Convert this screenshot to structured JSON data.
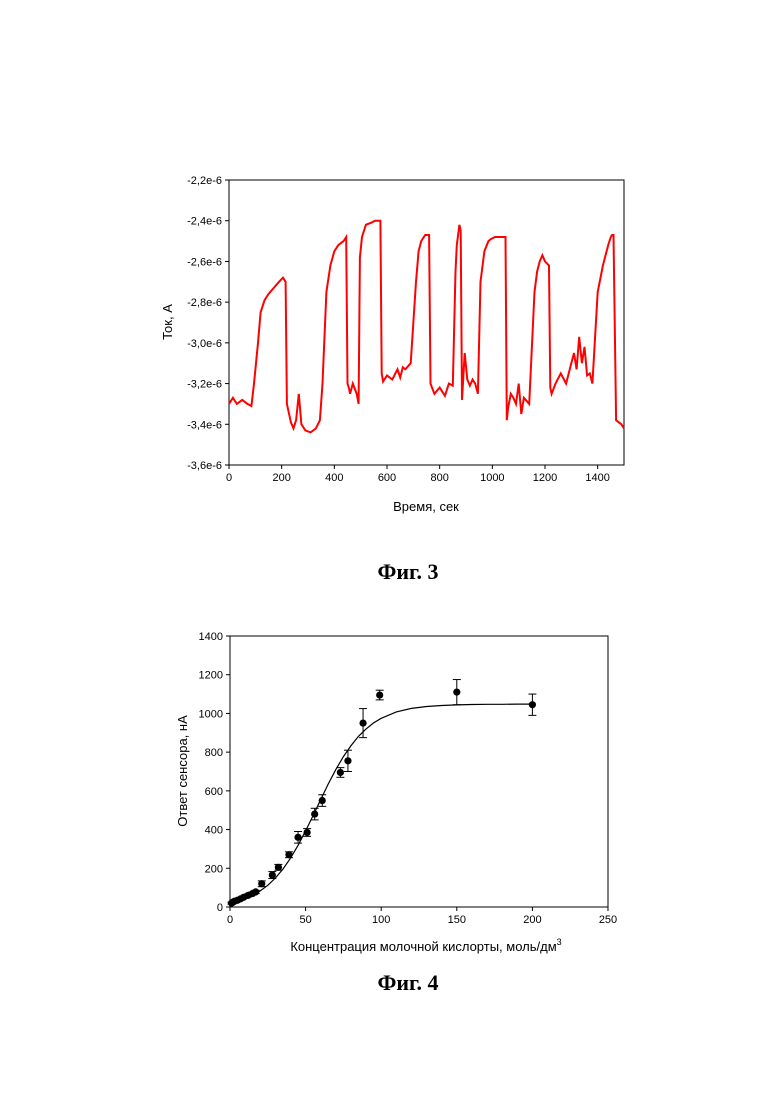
{
  "chart_data": [
    {
      "type": "line",
      "caption": "Фиг. 3",
      "xlabel": "Время, сек",
      "ylabel": "Ток, А",
      "xlim": [
        0,
        1500
      ],
      "ylim": [
        -3.6e-06,
        -2.2e-06
      ],
      "xticks": [
        0,
        200,
        400,
        600,
        800,
        1000,
        1200,
        1400
      ],
      "xtick_labels": [
        "0",
        "200",
        "400",
        "600",
        "800",
        "1000",
        "1200",
        "1400"
      ],
      "yticks": [
        -2.2e-06,
        -2.4e-06,
        -2.6e-06,
        -2.8e-06,
        -3e-06,
        -3.2e-06,
        -3.4e-06,
        -3.6e-06
      ],
      "ytick_labels": [
        "-2,2e-6",
        "-2,4e-6",
        "-2,6e-6",
        "-2,8e-6",
        "-3,0e-6",
        "-3,2e-6",
        "-3,4e-6",
        "-3,6e-6"
      ],
      "series_color": "#ff0000",
      "series": [
        {
          "x": [
            0,
            15,
            30,
            50,
            70,
            85,
            95,
            110,
            120,
            135,
            150,
            170,
            190,
            205,
            215,
            220,
            235,
            245,
            255,
            265,
            275,
            290,
            310,
            330,
            345,
            355,
            370,
            385,
            400,
            415,
            435,
            445,
            450,
            455,
            460,
            470,
            485,
            492,
            497,
            505,
            520,
            540,
            555,
            565,
            575,
            580,
            585,
            600,
            620,
            640,
            650,
            660,
            670,
            690,
            710,
            720,
            730,
            745,
            755,
            760,
            765,
            780,
            800,
            820,
            835,
            850,
            860,
            865,
            875,
            880,
            885,
            895,
            905,
            915,
            925,
            935,
            945,
            955,
            970,
            985,
            995,
            1010,
            1025,
            1040,
            1050,
            1055,
            1060,
            1070,
            1080,
            1090,
            1100,
            1110,
            1120,
            1140,
            1160,
            1170,
            1180,
            1190,
            1200,
            1215,
            1220,
            1225,
            1240,
            1260,
            1280,
            1300,
            1310,
            1320,
            1330,
            1340,
            1350,
            1360,
            1370,
            1380,
            1400,
            1420,
            1440,
            1450,
            1455,
            1460,
            1470,
            1490,
            1500
          ],
          "y": [
            -3.3e-06,
            -3.27e-06,
            -3.3e-06,
            -3.28e-06,
            -3.3e-06,
            -3.31e-06,
            -3.2e-06,
            -3e-06,
            -2.85e-06,
            -2.79e-06,
            -2.76e-06,
            -2.73e-06,
            -2.7e-06,
            -2.68e-06,
            -2.7e-06,
            -3.3e-06,
            -3.39e-06,
            -3.42e-06,
            -3.38e-06,
            -3.25e-06,
            -3.4e-06,
            -3.43e-06,
            -3.44e-06,
            -3.42e-06,
            -3.38e-06,
            -3.2e-06,
            -2.75e-06,
            -2.62e-06,
            -2.55e-06,
            -2.52e-06,
            -2.5e-06,
            -2.48e-06,
            -3.2e-06,
            -3.22e-06,
            -3.25e-06,
            -3.2e-06,
            -3.25e-06,
            -3.3e-06,
            -2.58e-06,
            -2.48e-06,
            -2.42e-06,
            -2.41e-06,
            -2.4e-06,
            -2.4e-06,
            -2.4e-06,
            -3.15e-06,
            -3.19e-06,
            -3.16e-06,
            -3.18e-06,
            -3.13e-06,
            -3.17e-06,
            -3.12e-06,
            -3.13e-06,
            -3.1e-06,
            -2.7e-06,
            -2.55e-06,
            -2.5e-06,
            -2.47e-06,
            -2.47e-06,
            -2.47e-06,
            -3.2e-06,
            -3.25e-06,
            -3.22e-06,
            -3.26e-06,
            -3.2e-06,
            -3.21e-06,
            -2.65e-06,
            -2.52e-06,
            -2.42e-06,
            -2.45e-06,
            -3.28e-06,
            -3.05e-06,
            -3.18e-06,
            -3.21e-06,
            -3.18e-06,
            -3.2e-06,
            -3.25e-06,
            -2.7e-06,
            -2.55e-06,
            -2.5e-06,
            -2.49e-06,
            -2.48e-06,
            -2.48e-06,
            -2.48e-06,
            -2.48e-06,
            -3.38e-06,
            -3.32e-06,
            -3.25e-06,
            -3.27e-06,
            -3.3e-06,
            -3.2e-06,
            -3.35e-06,
            -3.27e-06,
            -3.3e-06,
            -2.75e-06,
            -2.65e-06,
            -2.6e-06,
            -2.57e-06,
            -2.6e-06,
            -2.62e-06,
            -3.22e-06,
            -3.25e-06,
            -3.2e-06,
            -3.15e-06,
            -3.2e-06,
            -3.1e-06,
            -3.05e-06,
            -3.13e-06,
            -2.97e-06,
            -3.1e-06,
            -3.02e-06,
            -3.16e-06,
            -3.15e-06,
            -3.2e-06,
            -2.75e-06,
            -2.62e-06,
            -2.52e-06,
            -2.48e-06,
            -2.47e-06,
            -2.47e-06,
            -3.38e-06,
            -3.4e-06,
            -3.42e-06
          ]
        }
      ]
    },
    {
      "type": "scatter",
      "caption": "Фиг. 4",
      "xlabel": "Концентрация молочной кислорты, моль/дм",
      "xlabel_superscript": "3",
      "ylabel": "Ответ сенсора, нА",
      "xlim": [
        0,
        250
      ],
      "ylim": [
        0,
        1400
      ],
      "xticks": [
        0,
        50,
        100,
        150,
        200,
        250
      ],
      "xtick_labels": [
        "0",
        "50",
        "100",
        "150",
        "200",
        "250"
      ],
      "yticks": [
        0,
        200,
        400,
        600,
        800,
        1000,
        1200,
        1400
      ],
      "ytick_labels": [
        "0",
        "200",
        "400",
        "600",
        "800",
        "1000",
        "1200",
        "1400"
      ],
      "points": {
        "x": [
          1,
          2,
          3,
          5,
          7,
          9,
          12,
          15,
          17,
          21,
          28,
          32,
          39,
          45,
          51,
          56,
          61,
          73,
          78,
          88,
          99,
          150,
          200
        ],
        "y": [
          20,
          25,
          30,
          35,
          42,
          50,
          60,
          70,
          78,
          120,
          165,
          205,
          270,
          360,
          385,
          480,
          550,
          695,
          755,
          950,
          1095,
          1110,
          1045
        ],
        "err": [
          5,
          5,
          5,
          5,
          6,
          6,
          8,
          8,
          8,
          15,
          18,
          15,
          15,
          30,
          20,
          30,
          30,
          25,
          55,
          75,
          25,
          65,
          55
        ]
      },
      "fit_curve": {
        "x": [
          0,
          5,
          10,
          15,
          20,
          25,
          30,
          35,
          40,
          45,
          50,
          55,
          60,
          65,
          70,
          75,
          80,
          85,
          90,
          95,
          100,
          110,
          120,
          130,
          140,
          150,
          160,
          170,
          180,
          190,
          200
        ],
        "y": [
          19,
          29,
          43,
          60,
          83,
          112,
          150,
          196,
          252,
          318,
          393,
          473,
          555,
          636,
          710,
          777,
          834,
          882,
          920,
          951,
          975,
          1008,
          1026,
          1036,
          1041,
          1044,
          1046,
          1047,
          1047,
          1048,
          1048
        ]
      }
    }
  ]
}
